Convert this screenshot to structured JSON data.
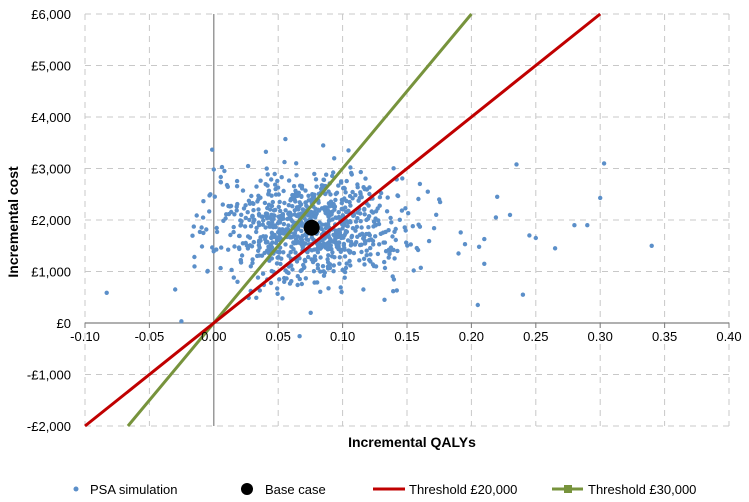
{
  "chart_data": {
    "type": "scatter",
    "xlabel": "Incremental QALYs",
    "ylabel": "Incremental cost",
    "xlim": [
      -0.1,
      0.4
    ],
    "ylim": [
      -2000,
      6000
    ],
    "x_ticks": [
      -0.1,
      -0.05,
      0.0,
      0.05,
      0.1,
      0.15,
      0.2,
      0.25,
      0.3,
      0.35,
      0.4
    ],
    "x_tick_labels": [
      "-0.10",
      "-0.05",
      "0.00",
      "0.05",
      "0.10",
      "0.15",
      "0.20",
      "0.25",
      "0.30",
      "0.35",
      "0.40"
    ],
    "y_ticks": [
      -2000,
      -1000,
      0,
      1000,
      2000,
      3000,
      4000,
      5000,
      6000
    ],
    "y_tick_labels": [
      "-£2,000",
      "-£1,000",
      "£0",
      "£1,000",
      "£2,000",
      "£3,000",
      "£4,000",
      "£5,000",
      "£6,000"
    ],
    "grid": true,
    "legend_position": "bottom",
    "colors": {
      "psa": "#5b8fc9",
      "base": "#000000",
      "threshold20": "#c00000",
      "threshold30": "#77933c",
      "grid": "#c8c8c8",
      "axis": "#808080"
    },
    "series": [
      {
        "name": "PSA simulation",
        "kind": "points",
        "cloud": {
          "n": 900,
          "mean_x": 0.075,
          "mean_y": 1850,
          "sd_x": 0.037,
          "sd_y": 520,
          "seed": 7
        },
        "outliers": [
          [
            -0.03,
            650
          ],
          [
            -0.015,
            1100
          ],
          [
            0.0,
            2980
          ],
          [
            -0.005,
            1000
          ],
          [
            0.205,
            350
          ],
          [
            0.235,
            3080
          ],
          [
            0.24,
            550
          ],
          [
            0.25,
            1650
          ],
          [
            0.265,
            1450
          ],
          [
            0.28,
            1900
          ],
          [
            0.29,
            1900
          ],
          [
            0.3,
            2430
          ],
          [
            0.303,
            3100
          ],
          [
            0.34,
            1500
          ],
          [
            0.22,
            2450
          ],
          [
            0.195,
            1530
          ],
          [
            0.206,
            1480
          ],
          [
            0.21,
            1150
          ],
          [
            0.23,
            2100
          ],
          [
            0.175,
            2400
          ],
          [
            0.19,
            1350
          ],
          [
            0.16,
            2700
          ],
          [
            0.21,
            1630
          ],
          [
            0.245,
            1700
          ]
        ]
      },
      {
        "name": "Base case",
        "kind": "point",
        "x": 0.076,
        "y": 1850
      },
      {
        "name": "Threshold £20,000",
        "kind": "line",
        "slope": 20000
      },
      {
        "name": "Threshold £30,000",
        "kind": "line",
        "slope": 30000
      }
    ]
  }
}
